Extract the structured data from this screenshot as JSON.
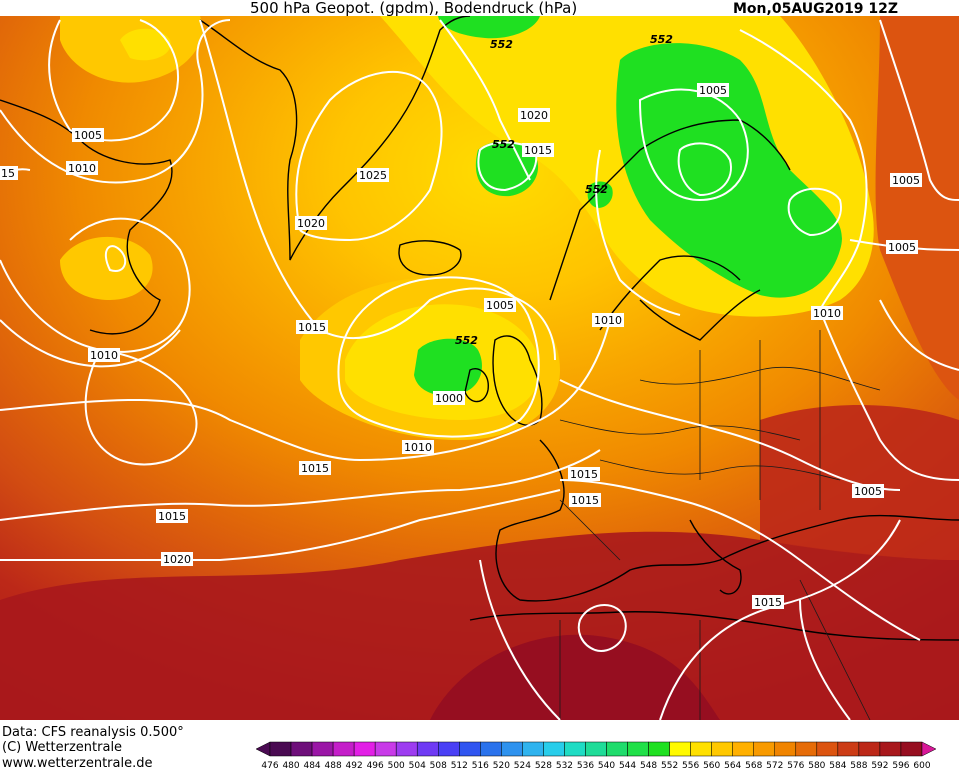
{
  "header": {
    "title": "500 hPa Geopot. (gpdm), Bodendruck (hPa)",
    "date": "Mon,05AUG2019  12Z"
  },
  "footer": {
    "line1": "Data: CFS reanalysis 0.500°",
    "line2": "(C) Wetterzentrale",
    "line3": "www.wetterzentrale.de"
  },
  "colorbar": {
    "ticks": [
      "476",
      "480",
      "484",
      "488",
      "492",
      "496",
      "500",
      "504",
      "508",
      "512",
      "516",
      "520",
      "524",
      "528",
      "532",
      "536",
      "540",
      "544",
      "548",
      "552",
      "556",
      "560",
      "564",
      "568",
      "572",
      "576",
      "580",
      "584",
      "588",
      "592",
      "596",
      "600"
    ],
    "colors": [
      "#4a0a52",
      "#6e0f7a",
      "#9a16a6",
      "#c41ec9",
      "#e21fe6",
      "#c83ae8",
      "#9d3cf0",
      "#6f3af4",
      "#4a40f5",
      "#3055f0",
      "#2a72ec",
      "#2e92ee",
      "#2fb3ee",
      "#28cdea",
      "#1fdcc4",
      "#1fdc98",
      "#1fdc6c",
      "#20e048",
      "#1fe021",
      "#fffa00",
      "#ffe000",
      "#ffc800",
      "#ffb000",
      "#f89a00",
      "#f08400",
      "#e66c08",
      "#dc5410",
      "#cc3c16",
      "#bc2818",
      "#a8181c",
      "#960e20",
      "#d81898"
    ]
  },
  "map": {
    "height_labels": [
      "552",
      "552",
      "552",
      "552",
      "552"
    ],
    "pressure_labels": [
      "1005",
      "1010",
      "1010",
      "1015",
      "1020",
      "1025",
      "1020",
      "1015",
      "1005",
      "1000",
      "1005",
      "1010",
      "1010",
      "1005",
      "1000",
      "1005",
      "1010",
      "1005",
      "1015",
      "1015",
      "1015",
      "1020",
      "1015",
      "15",
      "1010",
      "1015"
    ]
  }
}
